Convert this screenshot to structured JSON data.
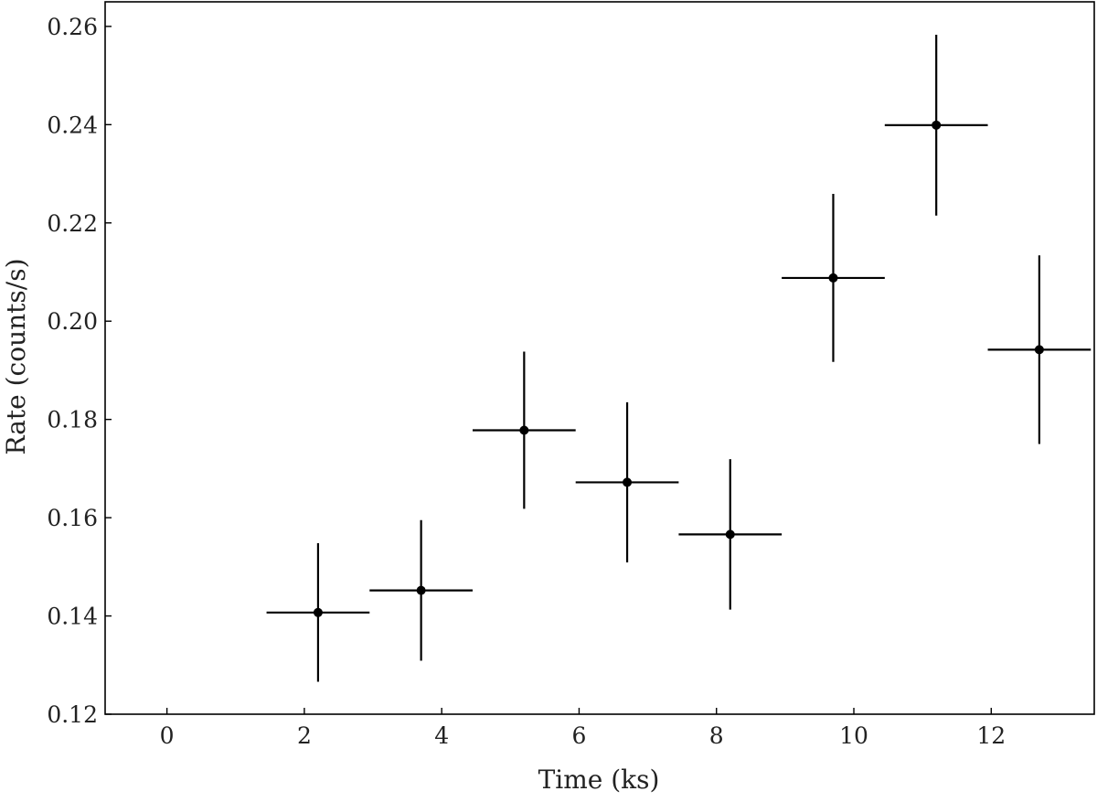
{
  "chart_data": {
    "type": "scatter",
    "title": "",
    "xlabel": "Time (ks)",
    "ylabel": "Rate (counts/s)",
    "xlim": [
      -0.9,
      13.5
    ],
    "ylim": [
      0.12,
      0.265
    ],
    "x_ticks": [
      0,
      2,
      4,
      6,
      8,
      10,
      12
    ],
    "x_tick_labels": [
      "0",
      "2",
      "4",
      "6",
      "8",
      "10",
      "12"
    ],
    "y_ticks": [
      0.12,
      0.14,
      0.16,
      0.18,
      0.2,
      0.22,
      0.24,
      0.26
    ],
    "y_tick_labels": [
      "0.12",
      "0.14",
      "0.16",
      "0.18",
      "0.20",
      "0.22",
      "0.24",
      "0.26"
    ],
    "grid": false,
    "legend": "none",
    "marker_color": "#000000",
    "points": [
      {
        "x": 2.2,
        "y": 0.1407,
        "xerr": 0.75,
        "yerr_low": 0.0141,
        "yerr_high": 0.0141
      },
      {
        "x": 3.7,
        "y": 0.1452,
        "xerr": 0.75,
        "yerr_low": 0.0143,
        "yerr_high": 0.0143
      },
      {
        "x": 5.2,
        "y": 0.1778,
        "xerr": 0.75,
        "yerr_low": 0.016,
        "yerr_high": 0.016
      },
      {
        "x": 6.7,
        "y": 0.1672,
        "xerr": 0.75,
        "yerr_low": 0.0163,
        "yerr_high": 0.0163
      },
      {
        "x": 8.2,
        "y": 0.1566,
        "xerr": 0.75,
        "yerr_low": 0.0153,
        "yerr_high": 0.0153
      },
      {
        "x": 9.7,
        "y": 0.2088,
        "xerr": 0.75,
        "yerr_low": 0.0171,
        "yerr_high": 0.0171
      },
      {
        "x": 11.2,
        "y": 0.2399,
        "xerr": 0.75,
        "yerr_low": 0.0184,
        "yerr_high": 0.0184
      },
      {
        "x": 12.7,
        "y": 0.1942,
        "xerr": 0.75,
        "yerr_low": 0.0192,
        "yerr_high": 0.0192
      }
    ]
  }
}
